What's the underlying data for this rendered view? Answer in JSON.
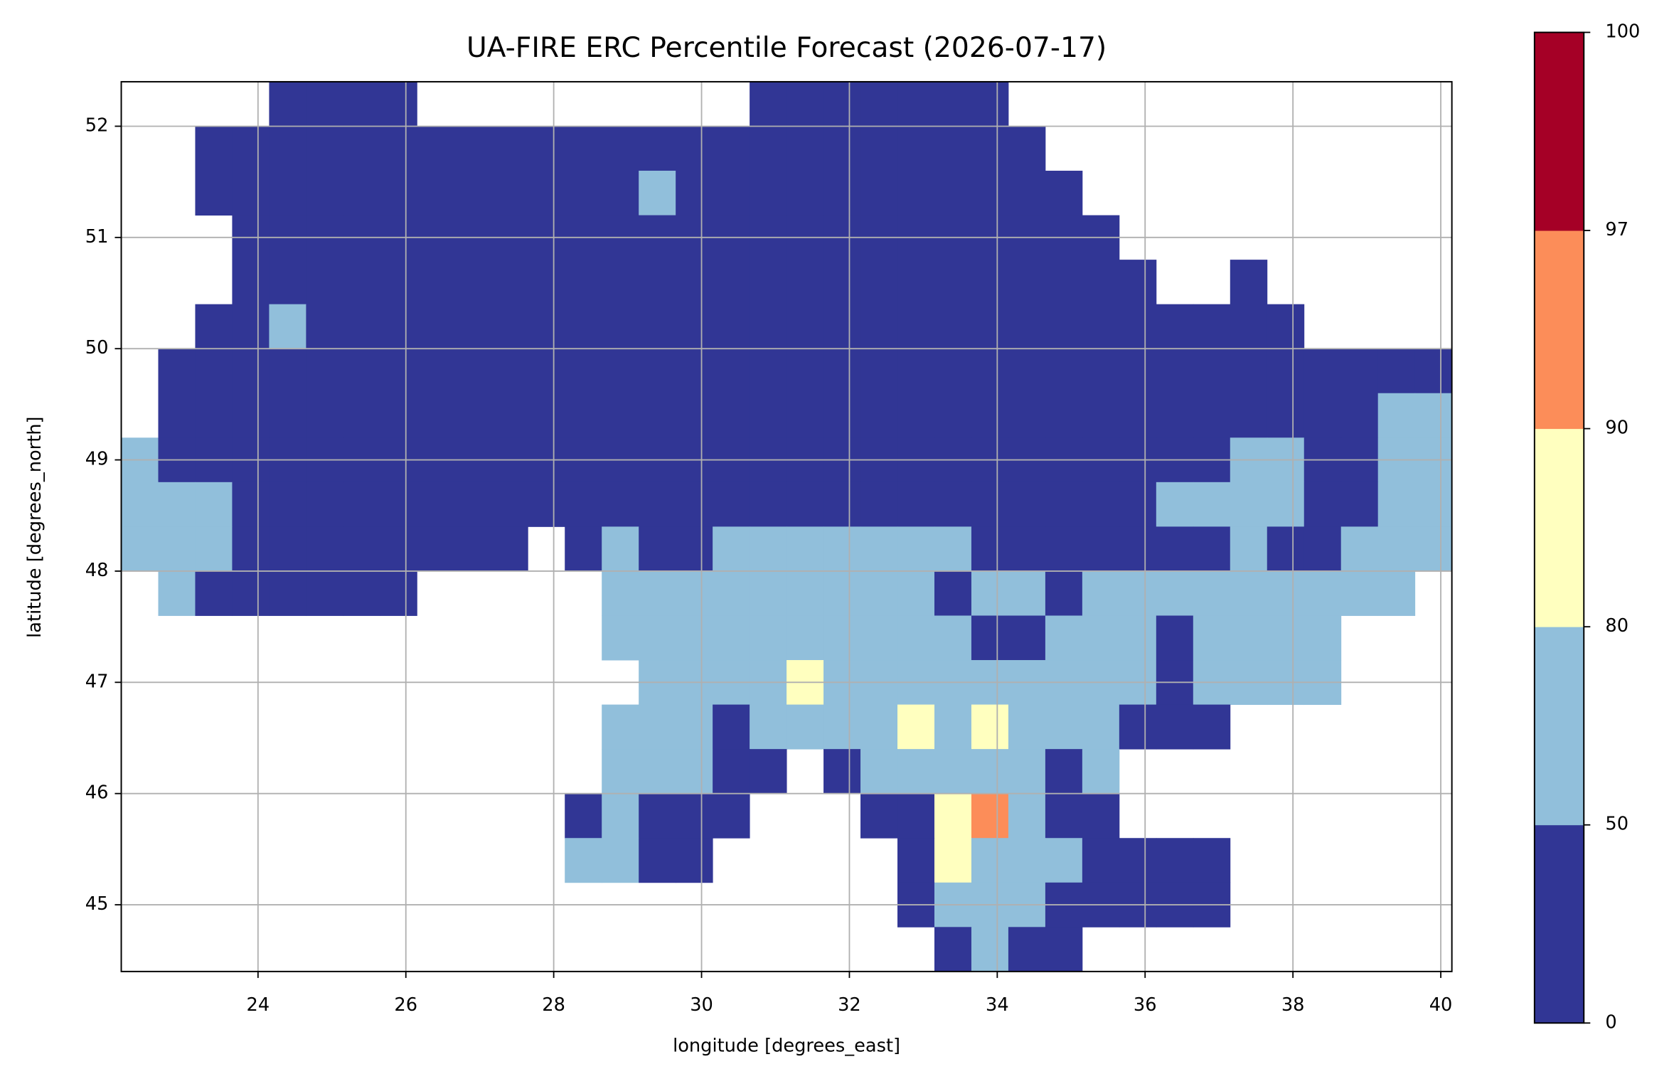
{
  "chart_data": {
    "type": "heatmap",
    "title": "UA-FIRE ERC Percentile Forecast (2026-07-17)",
    "x_label": "longitude [degrees_east]",
    "y_label": "latitude [degrees_north]",
    "xlim": [
      22.15,
      40.15
    ],
    "ylim": [
      44.4,
      52.4
    ],
    "xticks": [
      24,
      26,
      28,
      30,
      32,
      34,
      36,
      38,
      40
    ],
    "yticks": [
      45,
      46,
      47,
      48,
      49,
      50,
      51,
      52
    ],
    "grid": true,
    "x": [
      22.4,
      22.9,
      23.4,
      23.9,
      24.4,
      24.9,
      25.4,
      25.9,
      26.4,
      26.9,
      27.4,
      27.9,
      28.4,
      28.9,
      29.4,
      29.9,
      30.4,
      30.9,
      31.4,
      31.9,
      32.4,
      32.9,
      33.4,
      33.9,
      34.4,
      34.9,
      35.4,
      35.9,
      36.4,
      36.9,
      37.4,
      37.9,
      38.4,
      38.9,
      39.4,
      39.9
    ],
    "y": [
      52.2,
      51.8,
      51.4,
      51.0,
      50.6,
      50.2,
      49.8,
      49.4,
      49.0,
      48.6,
      48.2,
      47.8,
      47.4,
      47.0,
      46.6,
      46.2,
      45.8,
      45.4,
      45.0,
      44.6
    ],
    "values": [
      [
        null,
        null,
        null,
        null,
        25,
        25,
        25,
        25,
        null,
        null,
        null,
        null,
        null,
        null,
        null,
        null,
        null,
        25,
        25,
        25,
        25,
        25,
        25,
        25,
        null,
        null,
        null,
        null,
        null,
        null,
        null,
        null,
        null,
        null,
        null,
        null
      ],
      [
        null,
        null,
        25,
        25,
        25,
        25,
        25,
        25,
        25,
        25,
        25,
        25,
        25,
        25,
        25,
        25,
        25,
        25,
        25,
        25,
        25,
        25,
        25,
        25,
        25,
        null,
        null,
        null,
        null,
        null,
        null,
        null,
        null,
        null,
        null,
        null
      ],
      [
        null,
        null,
        25,
        25,
        25,
        25,
        25,
        25,
        25,
        25,
        25,
        25,
        25,
        25,
        65,
        25,
        25,
        25,
        25,
        25,
        25,
        25,
        25,
        25,
        25,
        25,
        null,
        null,
        null,
        null,
        null,
        null,
        null,
        null,
        null,
        null
      ],
      [
        null,
        null,
        null,
        25,
        25,
        25,
        25,
        25,
        25,
        25,
        25,
        25,
        25,
        25,
        25,
        25,
        25,
        25,
        25,
        25,
        25,
        25,
        25,
        25,
        25,
        25,
        25,
        null,
        null,
        null,
        null,
        null,
        null,
        null,
        null,
        null
      ],
      [
        null,
        null,
        null,
        25,
        25,
        25,
        25,
        25,
        25,
        25,
        25,
        25,
        25,
        25,
        25,
        25,
        25,
        25,
        25,
        25,
        25,
        25,
        25,
        25,
        25,
        25,
        25,
        25,
        null,
        null,
        25,
        null,
        null,
        null,
        null,
        null
      ],
      [
        null,
        null,
        25,
        25,
        65,
        25,
        25,
        25,
        25,
        25,
        25,
        25,
        25,
        25,
        25,
        25,
        25,
        25,
        25,
        25,
        25,
        25,
        25,
        25,
        25,
        25,
        25,
        25,
        25,
        25,
        25,
        25,
        null,
        null,
        null,
        null
      ],
      [
        null,
        25,
        25,
        25,
        25,
        25,
        25,
        25,
        25,
        25,
        25,
        25,
        25,
        25,
        25,
        25,
        25,
        25,
        25,
        25,
        25,
        25,
        25,
        25,
        25,
        25,
        25,
        25,
        25,
        25,
        25,
        25,
        25,
        25,
        25,
        25
      ],
      [
        null,
        25,
        25,
        25,
        25,
        25,
        25,
        25,
        25,
        25,
        25,
        25,
        25,
        25,
        25,
        25,
        25,
        25,
        25,
        25,
        25,
        25,
        25,
        25,
        25,
        25,
        25,
        25,
        25,
        25,
        25,
        25,
        25,
        25,
        65,
        65
      ],
      [
        65,
        25,
        25,
        25,
        25,
        25,
        25,
        25,
        25,
        25,
        25,
        25,
        25,
        25,
        25,
        25,
        25,
        25,
        25,
        25,
        25,
        25,
        25,
        25,
        25,
        25,
        25,
        25,
        25,
        25,
        65,
        65,
        25,
        25,
        65,
        65
      ],
      [
        65,
        65,
        65,
        25,
        25,
        25,
        25,
        25,
        25,
        25,
        25,
        25,
        25,
        25,
        25,
        25,
        25,
        25,
        25,
        25,
        25,
        25,
        25,
        25,
        25,
        25,
        25,
        25,
        65,
        65,
        65,
        65,
        25,
        25,
        65,
        65
      ],
      [
        65,
        65,
        65,
        25,
        25,
        25,
        25,
        25,
        25,
        25,
        25,
        null,
        25,
        65,
        25,
        25,
        65,
        65,
        65,
        65,
        65,
        65,
        65,
        25,
        25,
        25,
        25,
        25,
        25,
        25,
        65,
        25,
        25,
        65,
        65,
        65
      ],
      [
        null,
        65,
        25,
        25,
        25,
        25,
        25,
        25,
        null,
        null,
        null,
        null,
        null,
        65,
        65,
        65,
        65,
        65,
        65,
        65,
        65,
        65,
        25,
        65,
        65,
        25,
        65,
        65,
        65,
        65,
        65,
        65,
        65,
        65,
        65,
        null
      ],
      [
        null,
        null,
        null,
        null,
        null,
        null,
        null,
        null,
        null,
        null,
        null,
        null,
        null,
        65,
        65,
        65,
        65,
        65,
        65,
        65,
        65,
        65,
        65,
        25,
        25,
        65,
        65,
        65,
        25,
        65,
        65,
        65,
        65,
        null,
        null,
        null
      ],
      [
        null,
        null,
        null,
        null,
        null,
        null,
        null,
        null,
        null,
        null,
        null,
        null,
        null,
        null,
        65,
        65,
        65,
        65,
        85,
        65,
        65,
        65,
        65,
        65,
        65,
        65,
        65,
        65,
        25,
        65,
        65,
        65,
        65,
        null,
        null,
        null
      ],
      [
        null,
        null,
        null,
        null,
        null,
        null,
        null,
        null,
        null,
        null,
        null,
        null,
        null,
        65,
        65,
        65,
        25,
        65,
        65,
        65,
        65,
        85,
        65,
        85,
        65,
        65,
        65,
        25,
        25,
        25,
        null,
        null,
        null,
        null,
        null,
        null
      ],
      [
        null,
        null,
        null,
        null,
        null,
        null,
        null,
        null,
        null,
        null,
        null,
        null,
        null,
        65,
        65,
        65,
        25,
        25,
        null,
        25,
        65,
        65,
        65,
        65,
        65,
        25,
        65,
        null,
        null,
        null,
        null,
        null,
        null,
        null,
        null,
        null
      ],
      [
        null,
        null,
        null,
        null,
        null,
        null,
        null,
        null,
        null,
        null,
        null,
        null,
        25,
        65,
        25,
        25,
        25,
        null,
        null,
        null,
        25,
        25,
        85,
        93,
        65,
        25,
        25,
        null,
        null,
        null,
        null,
        null,
        null,
        null,
        null,
        null
      ],
      [
        null,
        null,
        null,
        null,
        null,
        null,
        null,
        null,
        null,
        null,
        null,
        null,
        65,
        65,
        25,
        25,
        null,
        null,
        null,
        null,
        null,
        25,
        85,
        65,
        65,
        65,
        25,
        25,
        25,
        25,
        null,
        null,
        null,
        null,
        null,
        null
      ],
      [
        null,
        null,
        null,
        null,
        null,
        null,
        null,
        null,
        null,
        null,
        null,
        null,
        null,
        null,
        null,
        null,
        null,
        null,
        null,
        null,
        null,
        25,
        65,
        65,
        65,
        25,
        25,
        25,
        25,
        25,
        null,
        null,
        null,
        null,
        null,
        null
      ],
      [
        null,
        null,
        null,
        null,
        null,
        null,
        null,
        null,
        null,
        null,
        null,
        null,
        null,
        null,
        null,
        null,
        null,
        null,
        null,
        null,
        null,
        null,
        25,
        65,
        25,
        25,
        null,
        null,
        null,
        null,
        null,
        null,
        null,
        null,
        null,
        null
      ]
    ],
    "colorbar": {
      "bounds": [
        0,
        50,
        80,
        90,
        97,
        100
      ],
      "colors": [
        "#313695",
        "#91bfdb",
        "#ffffbf",
        "#fc8d59",
        "#a50026"
      ]
    }
  }
}
